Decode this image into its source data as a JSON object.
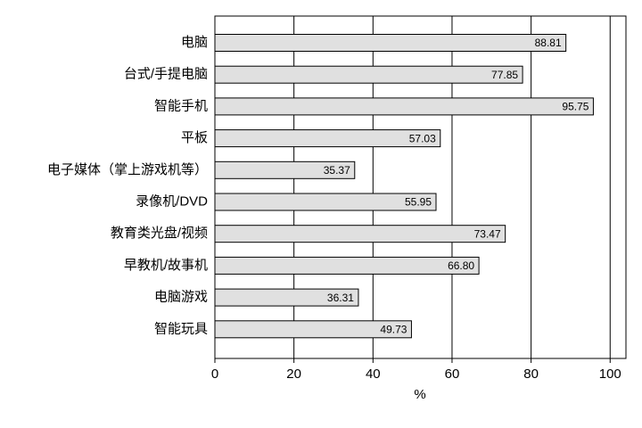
{
  "chart_data": {
    "type": "barh",
    "x_label": "%",
    "categories": [
      "电脑",
      "台式/手提电脑",
      "智能手机",
      "平板",
      "电子媒体（掌上游戏机等）",
      "录像机/DVD",
      "教育类光盘/视频",
      "早教机/故事机",
      "电脑游戏",
      "智能玩具"
    ],
    "values": [
      88.81,
      77.85,
      95.75,
      57.03,
      35.37,
      55.95,
      73.47,
      66.8,
      36.31,
      49.73
    ],
    "value_labels": [
      "88.81",
      "77.85",
      "95.75",
      "57.03",
      "35.37",
      "55.95",
      "73.47",
      "66.80",
      "36.31",
      "49.73"
    ],
    "color": "#e0e0e0",
    "xlim": [
      0,
      104
    ],
    "xticks": [
      0,
      20,
      40,
      60,
      80,
      100
    ],
    "grid": true
  }
}
